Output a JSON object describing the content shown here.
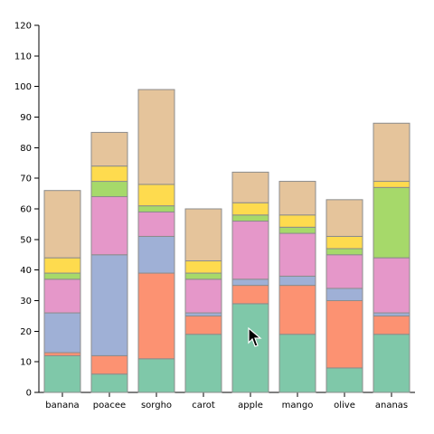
{
  "chart_data": {
    "type": "bar",
    "stacked": true,
    "title": "",
    "xlabel": "",
    "ylabel": "",
    "ylim": [
      0,
      120
    ],
    "y_ticks": [
      0,
      10,
      20,
      30,
      40,
      50,
      60,
      70,
      80,
      90,
      100,
      110,
      120
    ],
    "grid": false,
    "categories": [
      "banana",
      "poacee",
      "sorgho",
      "carot",
      "apple",
      "mango",
      "olive",
      "ananas"
    ],
    "series": [
      {
        "color": "#7fc8a9",
        "values": [
          12,
          6,
          11,
          19,
          29,
          19,
          8,
          19
        ]
      },
      {
        "color": "#fc9272",
        "values": [
          1,
          6,
          28,
          6,
          6,
          16,
          22,
          6
        ]
      },
      {
        "color": "#9fb0d6",
        "values": [
          13,
          33,
          12,
          1,
          2,
          3,
          4,
          1
        ]
      },
      {
        "color": "#e597c9",
        "values": [
          11,
          19,
          8,
          11,
          19,
          14,
          11,
          18
        ]
      },
      {
        "color": "#a6d96a",
        "values": [
          2,
          5,
          2,
          2,
          2,
          2,
          2,
          23
        ]
      },
      {
        "color": "#fedb4e",
        "values": [
          5,
          5,
          7,
          4,
          4,
          4,
          4,
          2
        ]
      },
      {
        "color": "#e5c49b",
        "values": [
          22,
          11,
          31,
          17,
          10,
          11,
          12,
          19
        ]
      }
    ]
  }
}
